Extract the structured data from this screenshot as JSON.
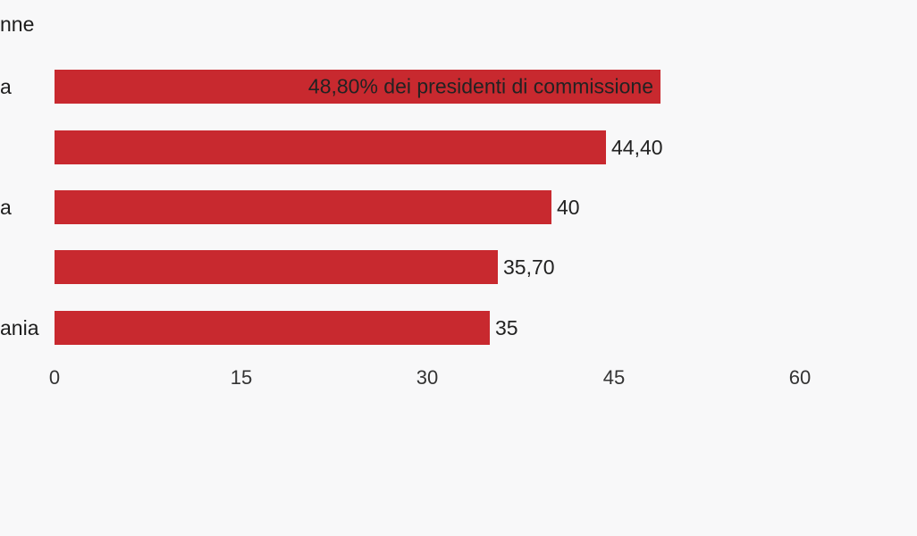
{
  "colors": {
    "background": "#f8f8f9",
    "bar": "#c8292f",
    "label_text": "#222222",
    "axis_text": "#333333"
  },
  "title_fragment": "nne",
  "chart_data": {
    "type": "bar",
    "orientation": "horizontal",
    "title_visible_fragment": "nne",
    "categories_visible": [
      "a",
      "",
      "a",
      "",
      "ania"
    ],
    "values": [
      48.8,
      44.4,
      40,
      35.7,
      35
    ],
    "bar_labels": [
      "48,80% dei presidenti di commissione",
      "44,40",
      "40",
      "35,70",
      "35"
    ],
    "first_bar_label_position": "inside-right",
    "x_ticks": [
      {
        "value": 0,
        "label": "0"
      },
      {
        "value": 15,
        "label": "15"
      },
      {
        "value": 30,
        "label": "30"
      },
      {
        "value": 45,
        "label": "45"
      },
      {
        "value": 60,
        "label": "60"
      }
    ],
    "xlim": [
      0,
      60
    ],
    "grid": false,
    "legend": false
  }
}
